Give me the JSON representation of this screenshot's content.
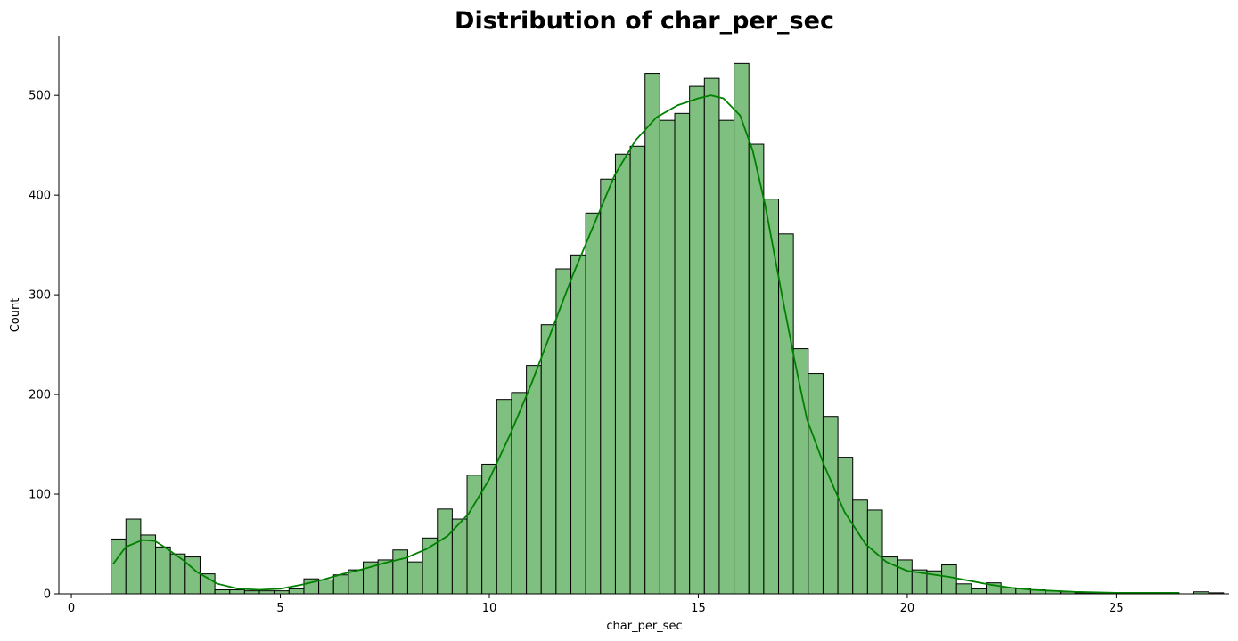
{
  "chart_data": {
    "type": "bar",
    "title": "Distribution of char_per_sec",
    "xlabel": "char_per_sec",
    "ylabel": "Count",
    "xlim": [
      -0.3,
      27.7
    ],
    "ylim": [
      0,
      560
    ],
    "xticks": [
      0,
      5,
      10,
      15,
      20,
      25
    ],
    "yticks": [
      0,
      100,
      200,
      300,
      400,
      500
    ],
    "grid": false,
    "colors": {
      "bar_fill": "#7fbf7f",
      "bar_edge": "#000000",
      "kde_line": "#008000",
      "axis": "#000000"
    },
    "bin_start": 0.95,
    "bin_width": 0.3549,
    "values": [
      55,
      75,
      59,
      47,
      40,
      37,
      20,
      4,
      4,
      3,
      3,
      3,
      5,
      15,
      14,
      19,
      24,
      32,
      34,
      44,
      32,
      56,
      85,
      75,
      119,
      130,
      195,
      202,
      229,
      270,
      326,
      340,
      382,
      416,
      441,
      449,
      522,
      475,
      482,
      509,
      517,
      475,
      532,
      451,
      396,
      361,
      246,
      221,
      178,
      137,
      94,
      84,
      37,
      34,
      24,
      23,
      29,
      10,
      5,
      11,
      6,
      5,
      4,
      3,
      2,
      1,
      1,
      1,
      0,
      1,
      1,
      1,
      0,
      2,
      1
    ],
    "kde": {
      "x": [
        1.0,
        1.3,
        1.7,
        2.0,
        2.3,
        2.7,
        3.0,
        3.5,
        4.0,
        4.5,
        5.0,
        5.5,
        6.0,
        6.5,
        7.0,
        7.5,
        8.0,
        8.5,
        9.0,
        9.5,
        10.0,
        10.5,
        11.0,
        11.5,
        12.0,
        12.5,
        13.0,
        13.5,
        14.0,
        14.5,
        15.0,
        15.3,
        15.6,
        16.0,
        16.3,
        16.6,
        17.0,
        17.3,
        17.6,
        18.0,
        18.5,
        19.0,
        19.5,
        20.0,
        20.5,
        21.0,
        21.5,
        22.0,
        22.5,
        23.0,
        24.0,
        25.0,
        26.0,
        26.5
      ],
      "y": [
        30,
        47,
        54,
        53,
        45,
        33,
        22,
        10,
        5,
        4,
        5,
        9,
        14,
        20,
        25,
        31,
        36,
        45,
        58,
        80,
        115,
        160,
        210,
        265,
        320,
        370,
        420,
        455,
        478,
        490,
        497,
        500,
        497,
        480,
        445,
        390,
        300,
        235,
        175,
        130,
        82,
        50,
        32,
        23,
        20,
        17,
        13,
        9,
        6,
        4,
        2,
        1,
        1,
        1
      ]
    }
  }
}
